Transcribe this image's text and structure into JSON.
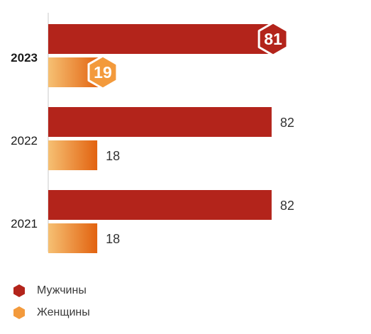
{
  "chart_data": {
    "type": "bar",
    "orientation": "horizontal",
    "categories": [
      "2023",
      "2022",
      "2021"
    ],
    "highlight_category": "2023",
    "series": [
      {
        "name": "Мужчины",
        "values": [
          81,
          82,
          82
        ],
        "color": "#b3241b"
      },
      {
        "name": "Женщины",
        "values": [
          19,
          18,
          18
        ],
        "color_start": "#f6c073",
        "color_end": "#e2620f"
      }
    ],
    "xlim": [
      0,
      100
    ],
    "grid": false,
    "legend_position": "bottom-left",
    "value_labels": true
  },
  "legend": {
    "items": [
      {
        "label": "Мужчины",
        "color": "#b3241b",
        "icon": "hexagon-icon"
      },
      {
        "label": "Женщины",
        "color": "#f39a3c",
        "icon": "hexagon-icon"
      }
    ]
  }
}
